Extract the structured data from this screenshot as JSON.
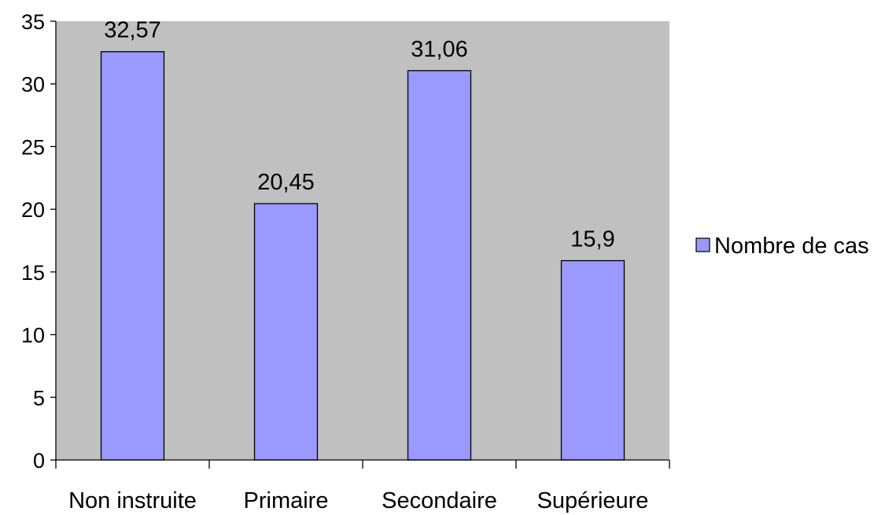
{
  "chart_data": {
    "type": "bar",
    "categories": [
      "Non instruite",
      "Primaire",
      "Secondaire",
      "Supérieure"
    ],
    "series": [
      {
        "name": "Nombre de cas",
        "values": [
          32.57,
          20.45,
          31.06,
          15.9
        ],
        "labels": [
          "32,57",
          "20,45",
          "31,06",
          "15,9"
        ],
        "color": "#9999ff"
      }
    ],
    "ylim": [
      0,
      35
    ],
    "yticks": [
      "0",
      "5",
      "10",
      "15",
      "20",
      "25",
      "30",
      "35"
    ],
    "plot_background": "#c0c0c0",
    "grid": false,
    "legend_position": "right"
  }
}
